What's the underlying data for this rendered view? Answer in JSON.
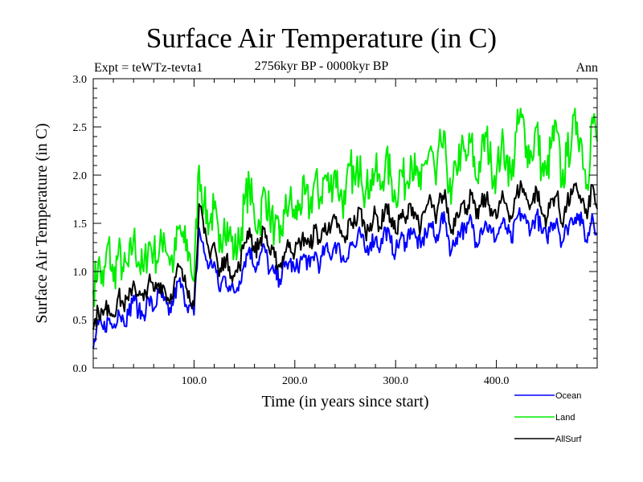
{
  "chart_data": {
    "type": "line",
    "title": "Surface Air Temperature (in C)",
    "subtitle": "2756kyr BP - 0000kyr BP",
    "annotations": {
      "left": "Expt = teWTz-tevta1",
      "right": "Ann"
    },
    "xlabel": "Time (in years since start)",
    "ylabel": "Surface Air Temperature (in C)",
    "xlim": [
      0,
      500
    ],
    "ylim": [
      0.0,
      3.0
    ],
    "x_ticks": [
      100,
      200,
      300,
      400
    ],
    "x_tick_labels": [
      "100.0",
      "200.0",
      "300.0",
      "400.0"
    ],
    "x_minor_step": 20,
    "y_ticks": [
      0.0,
      0.5,
      1.0,
      1.5,
      2.0,
      2.5,
      3.0
    ],
    "y_tick_labels": [
      "0.0",
      "0.5",
      "1.0",
      "1.5",
      "2.0",
      "2.5",
      "3.0"
    ],
    "y_minor_step": 0.1,
    "grid": false,
    "legend_position": "bottom-right, below plot",
    "x": [
      0,
      5,
      10,
      15,
      20,
      25,
      30,
      35,
      40,
      45,
      50,
      55,
      60,
      65,
      70,
      75,
      80,
      85,
      90,
      95,
      100,
      105,
      110,
      115,
      120,
      125,
      130,
      135,
      140,
      145,
      150,
      155,
      160,
      165,
      170,
      175,
      180,
      185,
      190,
      195,
      200,
      205,
      210,
      215,
      220,
      225,
      230,
      235,
      240,
      245,
      250,
      255,
      260,
      265,
      270,
      275,
      280,
      285,
      290,
      295,
      300,
      305,
      310,
      315,
      320,
      325,
      330,
      335,
      340,
      345,
      350,
      355,
      360,
      365,
      370,
      375,
      380,
      385,
      390,
      395,
      400,
      405,
      410,
      415,
      420,
      425,
      430,
      435,
      440,
      445,
      450,
      455,
      460,
      465,
      470,
      475,
      480,
      485,
      490,
      495,
      500
    ],
    "series": [
      {
        "name": "Ocean",
        "color": "#0000ff",
        "values": [
          0.2,
          0.45,
          0.4,
          0.5,
          0.42,
          0.6,
          0.5,
          0.55,
          0.75,
          0.58,
          0.55,
          0.72,
          0.6,
          0.78,
          0.7,
          0.55,
          0.72,
          0.9,
          0.75,
          0.65,
          0.55,
          1.45,
          1.2,
          1.05,
          1.1,
          0.8,
          0.95,
          0.85,
          0.78,
          0.9,
          1.1,
          1.25,
          1.05,
          1.15,
          1.25,
          1.0,
          0.98,
          0.92,
          1.05,
          1.1,
          1.0,
          1.1,
          1.15,
          1.05,
          1.2,
          1.05,
          1.25,
          1.15,
          1.3,
          1.2,
          1.1,
          1.3,
          1.25,
          1.4,
          1.2,
          1.3,
          1.35,
          1.25,
          1.45,
          1.3,
          1.2,
          1.35,
          1.3,
          1.45,
          1.35,
          1.25,
          1.4,
          1.5,
          1.3,
          1.55,
          1.5,
          1.2,
          1.35,
          1.45,
          1.4,
          1.55,
          1.3,
          1.45,
          1.5,
          1.4,
          1.35,
          1.5,
          1.45,
          1.3,
          1.55,
          1.6,
          1.5,
          1.45,
          1.6,
          1.4,
          1.35,
          1.5,
          1.55,
          1.3,
          1.45,
          1.55,
          1.6,
          1.5,
          1.3,
          1.6,
          1.4
        ]
      },
      {
        "name": "Land",
        "color": "#00ee00",
        "values": [
          0.8,
          1.1,
          0.85,
          1.3,
          0.9,
          1.2,
          1.0,
          1.05,
          1.35,
          1.1,
          1.0,
          1.3,
          1.2,
          1.15,
          1.4,
          1.15,
          1.1,
          1.45,
          1.3,
          1.2,
          0.9,
          2.1,
          1.7,
          1.5,
          1.65,
          1.2,
          1.55,
          1.4,
          1.2,
          1.3,
          1.7,
          1.9,
          1.55,
          1.5,
          1.85,
          1.6,
          1.45,
          1.3,
          1.6,
          1.75,
          1.55,
          1.7,
          1.8,
          1.65,
          1.95,
          1.75,
          2.0,
          1.85,
          2.05,
          1.8,
          1.7,
          2.1,
          1.9,
          2.2,
          1.8,
          1.95,
          2.05,
          1.85,
          2.15,
          2.0,
          1.75,
          2.05,
          1.9,
          2.2,
          2.0,
          1.85,
          2.15,
          2.3,
          1.9,
          2.35,
          2.2,
          1.7,
          2.1,
          2.25,
          2.15,
          2.35,
          1.95,
          2.2,
          2.4,
          2.1,
          2.0,
          2.3,
          2.2,
          1.95,
          2.45,
          2.6,
          2.3,
          2.2,
          2.5,
          2.05,
          2.0,
          2.35,
          2.45,
          1.9,
          2.2,
          2.4,
          2.55,
          2.3,
          1.9,
          2.6,
          2.35
        ]
      },
      {
        "name": "AllSurf",
        "color": "#000000",
        "values": [
          0.4,
          0.6,
          0.55,
          0.65,
          0.55,
          0.75,
          0.65,
          0.7,
          0.9,
          0.75,
          0.7,
          0.9,
          0.8,
          0.88,
          0.85,
          0.7,
          0.85,
          1.05,
          0.9,
          0.8,
          0.65,
          1.7,
          1.4,
          1.2,
          1.3,
          0.95,
          1.15,
          1.05,
          0.95,
          1.05,
          1.3,
          1.45,
          1.2,
          1.3,
          1.45,
          1.2,
          1.15,
          1.05,
          1.2,
          1.3,
          1.2,
          1.3,
          1.35,
          1.25,
          1.45,
          1.3,
          1.5,
          1.4,
          1.55,
          1.4,
          1.3,
          1.55,
          1.5,
          1.65,
          1.4,
          1.5,
          1.6,
          1.45,
          1.7,
          1.55,
          1.4,
          1.6,
          1.5,
          1.7,
          1.6,
          1.45,
          1.65,
          1.75,
          1.5,
          1.8,
          1.75,
          1.4,
          1.6,
          1.7,
          1.65,
          1.8,
          1.55,
          1.7,
          1.75,
          1.65,
          1.55,
          1.75,
          1.7,
          1.55,
          1.8,
          1.9,
          1.75,
          1.7,
          1.85,
          1.6,
          1.55,
          1.75,
          1.8,
          1.5,
          1.7,
          1.8,
          1.85,
          1.75,
          1.55,
          1.9,
          1.65
        ]
      }
    ]
  }
}
